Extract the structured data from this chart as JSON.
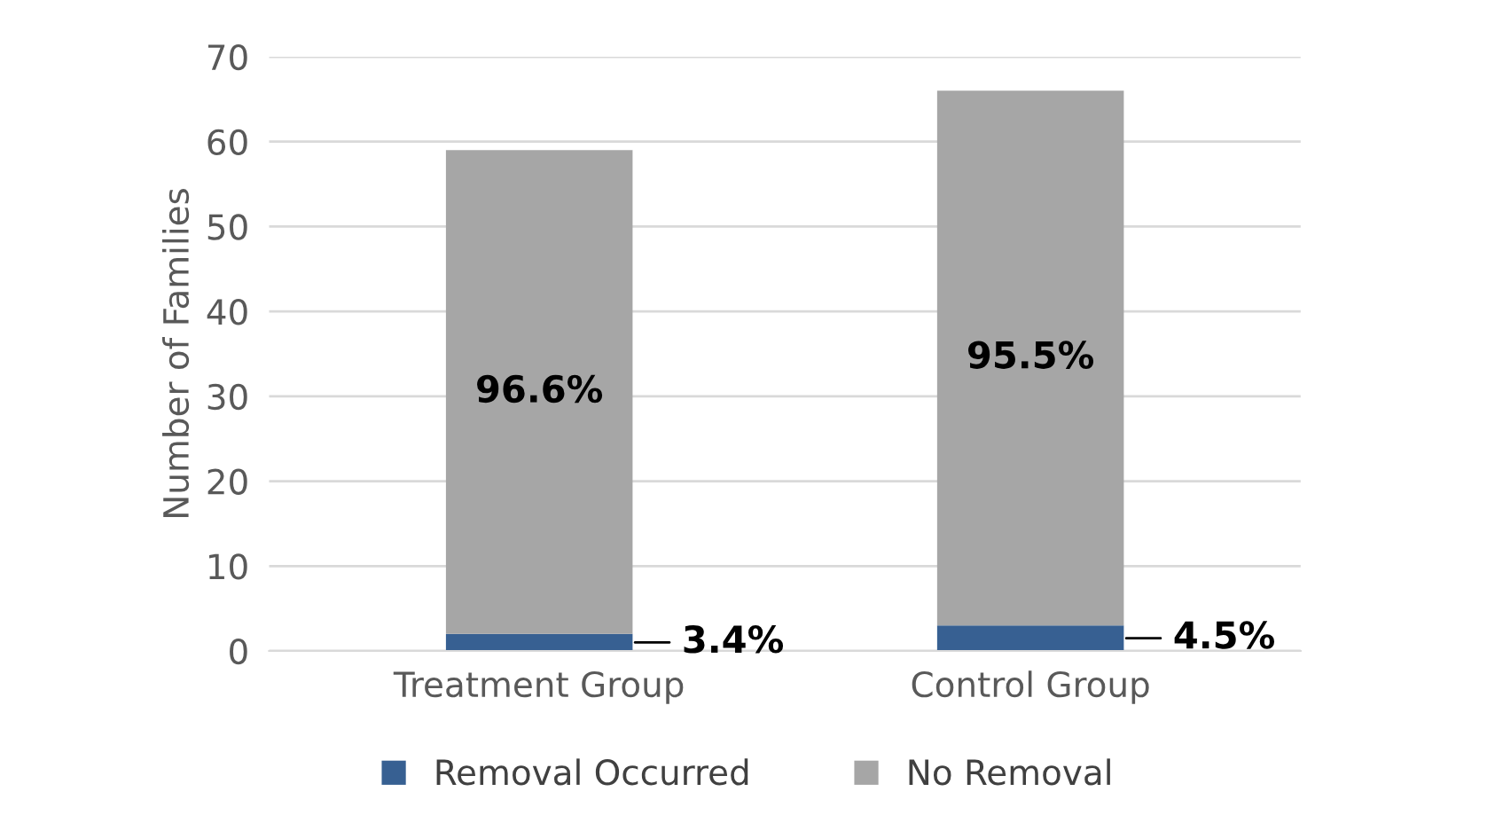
{
  "chart_data": {
    "type": "bar",
    "stacked": true,
    "ylabel": "Number of Families",
    "categories": [
      "Treatment Group",
      "Control Group"
    ],
    "series": [
      {
        "name": "Removal Occurred",
        "color": "#376092",
        "values": [
          2,
          3
        ]
      },
      {
        "name": "No Removal",
        "color": "#a6a6a6",
        "values": [
          57,
          63
        ]
      }
    ],
    "annotations": [
      "96.6%",
      "95.5%",
      "3.4%",
      "4.5%"
    ],
    "ylim": [
      0,
      70
    ],
    "yticks": [
      0,
      10,
      20,
      30,
      40,
      50,
      60,
      70
    ],
    "grid": "y",
    "legend": "bottom"
  }
}
